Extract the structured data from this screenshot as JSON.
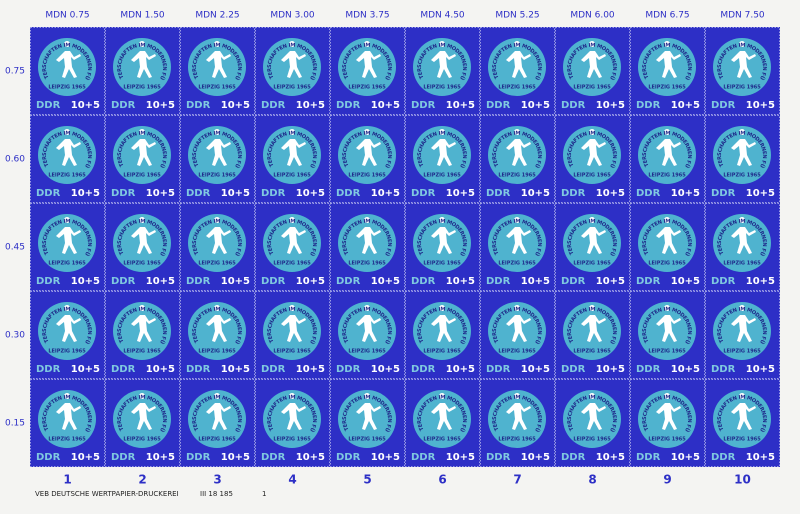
{
  "top_prices": [
    "MDN 0.75",
    "MDN 1.50",
    "MDN 2.25",
    "MDN 3.00",
    "MDN 3.75",
    "MDN 4.50",
    "MDN 5.25",
    "MDN 6.00",
    "MDN 6.75",
    "MDN 7.50"
  ],
  "row_values": [
    "0.75",
    "0.60",
    "0.45",
    "0.30",
    "0.15"
  ],
  "column_numbers": [
    "1",
    "2",
    "3",
    "4",
    "5",
    "6",
    "7",
    "8",
    "9",
    "10"
  ],
  "stamp": {
    "circle_text": "WELTMEISTERSCHAFTEN IM MODERNEN FÜNFKAMPF",
    "city_year": "LEIPZIG 1965",
    "country": "DDR",
    "denomination": "10+5"
  },
  "footer": {
    "printer": "VEB DEUTSCHE WERTPAPIER-DRUCKEREI",
    "number": "III 18 185",
    "plate": "1"
  }
}
